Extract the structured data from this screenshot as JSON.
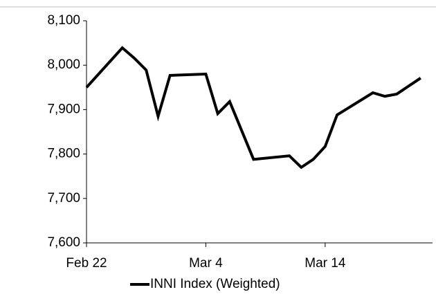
{
  "chart_data": {
    "type": "line",
    "x": [
      "Feb 22",
      "Feb 25",
      "Feb 26",
      "Feb 27",
      "Feb 28",
      "Mar 1",
      "Mar 4",
      "Mar 5",
      "Mar 6",
      "Mar 8",
      "Mar 11",
      "Mar 12",
      "Mar 13",
      "Mar 14",
      "Mar 15",
      "Mar 18",
      "Mar 19",
      "Mar 20",
      "Mar 22"
    ],
    "series": [
      {
        "name": "INNI Index (Weighted)",
        "color": "#000000",
        "values": [
          7950,
          8039,
          8016,
          7989,
          7885,
          7977,
          7980,
          7891,
          7918,
          7788,
          7796,
          7770,
          7788,
          7817,
          7888,
          7938,
          7930,
          7935,
          7971
        ]
      }
    ],
    "xlim": [
      "Feb 22",
      "Mar 23"
    ],
    "xticks": [
      "Feb 22",
      "Mar 4",
      "Mar 14"
    ],
    "ylim": [
      7600,
      8100
    ],
    "yticks": [
      {
        "value": 7600,
        "label": "7,600"
      },
      {
        "value": 7700,
        "label": "7,700"
      },
      {
        "value": 7800,
        "label": "7,800"
      },
      {
        "value": 7900,
        "label": "7,900"
      },
      {
        "value": 8000,
        "label": "8,000"
      },
      {
        "value": 8100,
        "label": "8,100"
      }
    ],
    "legend": "bottom"
  }
}
